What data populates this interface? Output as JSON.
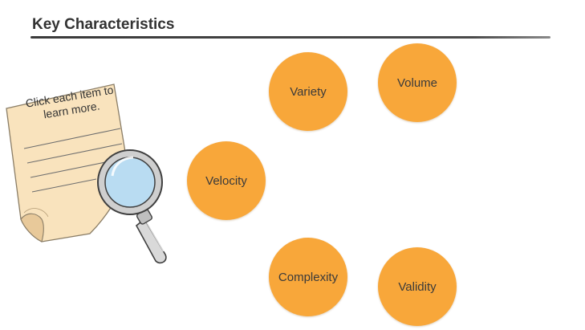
{
  "header": {
    "title": "Key Characteristics"
  },
  "instruction": {
    "text": "Click each item to learn more."
  },
  "items": [
    {
      "id": "variety",
      "label": "Variety"
    },
    {
      "id": "volume",
      "label": "Volume"
    },
    {
      "id": "velocity",
      "label": "Velocity"
    },
    {
      "id": "complexity",
      "label": "Complexity"
    },
    {
      "id": "validity",
      "label": "Validity"
    }
  ],
  "colors": {
    "circle_fill": "#f8a73a",
    "paper_fill": "#f9e3bd",
    "lens_fill": "#b9dcf2",
    "rule": "#3a3a3a"
  },
  "icons": {
    "paper": "note-paper-icon",
    "magnifier": "magnifying-glass-icon"
  }
}
